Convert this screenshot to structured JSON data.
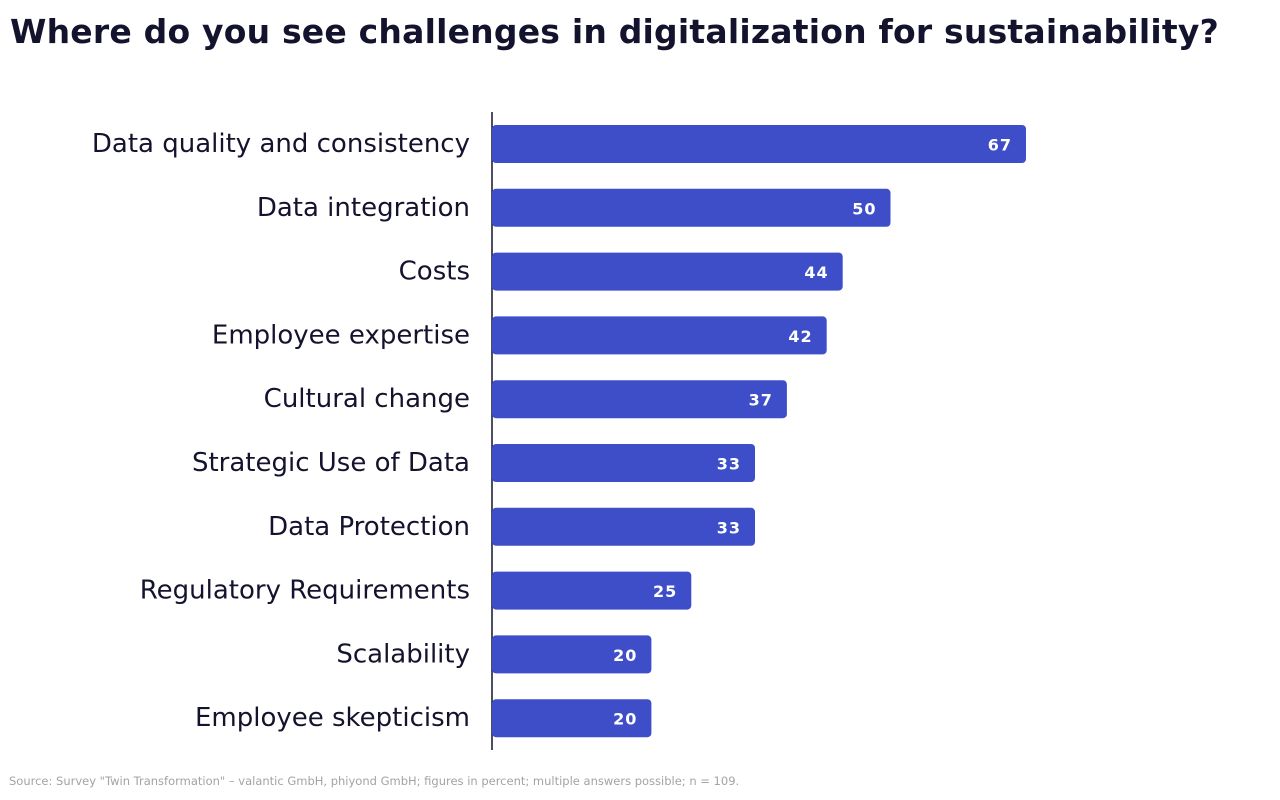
{
  "chart_data": {
    "type": "bar",
    "orientation": "horizontal",
    "title": "Where do you see challenges in digitalization for sustainability?",
    "categories": [
      "Data quality and consistency",
      "Data integration",
      "Costs",
      "Employee expertise",
      "Cultural change",
      "Strategic Use of Data",
      "Data Protection",
      "Regulatory Requirements",
      "Scalability",
      "Employee skepticism"
    ],
    "values": [
      67,
      50,
      44,
      42,
      37,
      33,
      33,
      25,
      20,
      20
    ],
    "xlabel": "",
    "ylabel": "",
    "xlim": [
      0,
      100
    ],
    "grid": false,
    "legend": "none",
    "bar_color": "#3d4ec8",
    "value_label_color": "#ffffff",
    "axis_color": "#14132e",
    "text_color": "#14132e"
  },
  "source": "Source: Survey \"Twin Transformation\" – valantic GmbH, phiyond GmbH; figures in percent; multiple answers possible; n = 109."
}
